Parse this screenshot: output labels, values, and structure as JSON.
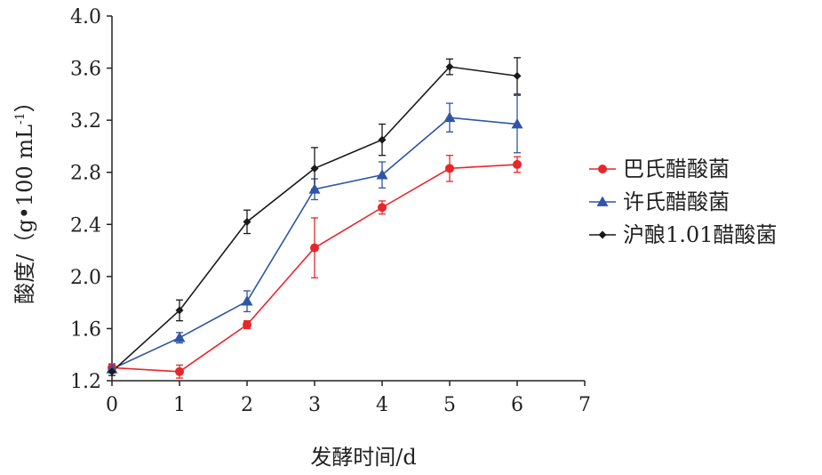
{
  "chart_data": {
    "type": "line",
    "xlabel": "发酵时间/d",
    "ylabel": "酸度/（g•100 mL",
    "ylabel_sup": "-1",
    "ylabel_close": "）",
    "xlim": [
      0,
      7
    ],
    "ylim": [
      1.2,
      4.0
    ],
    "xticks": [
      "0",
      "1",
      "2",
      "3",
      "4",
      "5",
      "6",
      "7"
    ],
    "yticks": [
      "1.2",
      "1.6",
      "2.0",
      "2.4",
      "2.8",
      "3.2",
      "3.6",
      "4.0"
    ],
    "grid": false,
    "legend_position": "right",
    "x": [
      0,
      1,
      2,
      3,
      4,
      5,
      6
    ],
    "series": [
      {
        "name": "巴氏醋酸菌",
        "color": "#e8262a",
        "marker": "circle",
        "values": [
          1.3,
          1.27,
          1.63,
          2.22,
          2.53,
          2.83,
          2.86
        ],
        "errors": [
          0.03,
          0.05,
          0.03,
          0.23,
          0.05,
          0.1,
          0.06
        ]
      },
      {
        "name": "许氏醋酸菌",
        "color": "#2f55a4",
        "marker": "triangle",
        "values": [
          1.29,
          1.53,
          1.81,
          2.67,
          2.78,
          3.22,
          3.17
        ],
        "errors": [
          0.03,
          0.04,
          0.08,
          0.08,
          0.1,
          0.11,
          0.22
        ]
      },
      {
        "name": "沪酿1.01醋酸菌",
        "color": "#1a1a1a",
        "marker": "diamond",
        "values": [
          1.27,
          1.74,
          2.42,
          2.83,
          3.05,
          3.61,
          3.54
        ],
        "errors": [
          0.03,
          0.08,
          0.09,
          0.16,
          0.12,
          0.06,
          0.14
        ]
      }
    ]
  }
}
